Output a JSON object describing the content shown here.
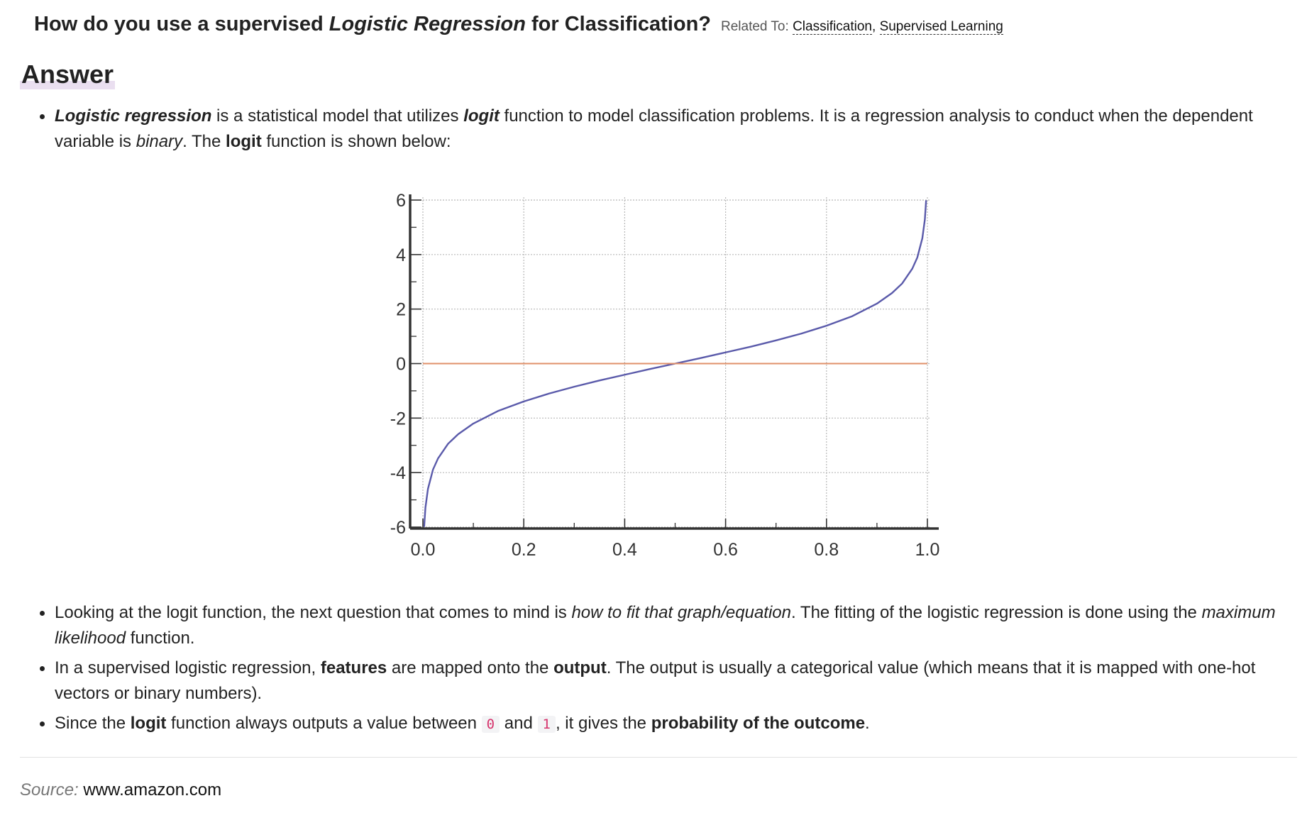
{
  "question": {
    "title_prefix": "How do you use a supervised ",
    "title_emphasis": "Logistic Regression",
    "title_suffix": " for Classification?",
    "related_label": "Related To:",
    "related_links": [
      "Classification",
      "Supervised Learning"
    ],
    "related_separator": ","
  },
  "answer": {
    "heading": "Answer",
    "bullet1": {
      "term": "Logistic regression",
      "t1": " is a statistical model that utilizes ",
      "logit_em": "logit",
      "t2": " function to model classification problems. It is a regression analysis to conduct when the dependent variable is ",
      "binary": "binary",
      "t3": ". The ",
      "logit_bold": "logit",
      "t4": " function is shown below:"
    },
    "bullet2": {
      "t1": "Looking at the logit function, the next question that comes to mind is ",
      "em1": "how to fit that graph/equation",
      "t2": ". The fitting of the logistic regression is done using the ",
      "em2": "maximum likelihood",
      "t3": " function."
    },
    "bullet3": {
      "t1": "In a supervised logistic regression, ",
      "b1": "features",
      "t2": " are mapped onto the ",
      "b2": "output",
      "t3": ". The output is usually a categorical value (which means that it is mapped with one-hot vectors or binary numbers)."
    },
    "bullet4": {
      "t1": "Since the ",
      "b1": "logit",
      "t2": " function always outputs a value between ",
      "code1": "0",
      "t3": " and ",
      "code2": "1",
      "t4": ", it gives the ",
      "b2": "probability of the outcome",
      "t5": "."
    }
  },
  "source": {
    "label": "Source:",
    "link": "www.amazon.com"
  },
  "chart_data": {
    "type": "line",
    "title": "",
    "xlabel": "",
    "ylabel": "",
    "xlim": [
      0,
      1
    ],
    "ylim": [
      -6,
      6
    ],
    "x_ticks": [
      "0.0",
      "0.2",
      "0.4",
      "0.6",
      "0.8",
      "1.0"
    ],
    "y_ticks": [
      "6",
      "4",
      "2",
      "0",
      "-2",
      "-4",
      "-6"
    ],
    "grid": true,
    "series": [
      {
        "color": "#5a5aaa",
        "x": [
          0.0025,
          0.005,
          0.01,
          0.02,
          0.03,
          0.05,
          0.07,
          0.1,
          0.15,
          0.2,
          0.25,
          0.3,
          0.35,
          0.4,
          0.45,
          0.5,
          0.55,
          0.6,
          0.65,
          0.7,
          0.75,
          0.8,
          0.85,
          0.9,
          0.93,
          0.95,
          0.97,
          0.98,
          0.99,
          0.995,
          0.9975
        ],
        "y": [
          -5.99,
          -5.29,
          -4.6,
          -3.89,
          -3.48,
          -2.94,
          -2.59,
          -2.2,
          -1.73,
          -1.39,
          -1.1,
          -0.85,
          -0.62,
          -0.41,
          -0.2,
          0.0,
          0.2,
          0.41,
          0.62,
          0.85,
          1.1,
          1.39,
          1.73,
          2.2,
          2.59,
          2.94,
          3.48,
          3.89,
          4.6,
          5.29,
          5.99
        ]
      },
      {
        "color": "#e0906a",
        "x": [
          0,
          1
        ],
        "y": [
          0,
          0
        ]
      }
    ]
  }
}
